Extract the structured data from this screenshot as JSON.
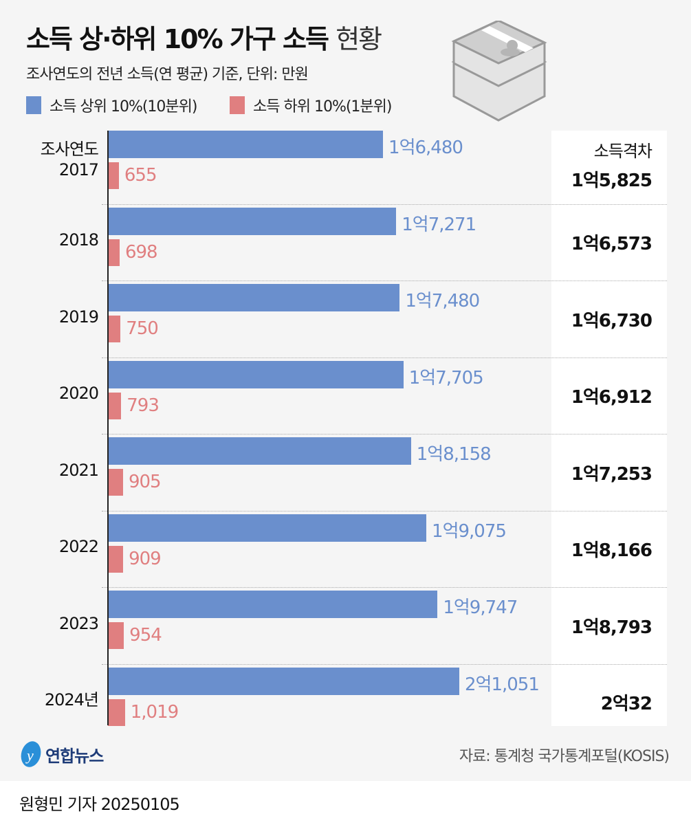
{
  "title_bold": "소득 상·하위 10% 가구 소득",
  "title_light": "현황",
  "subtitle": "조사연도의 전년 소득(연 평균) 기준, 단위: 만원",
  "legend": [
    {
      "label": "소득 상위 10%(10분위)",
      "color": "#6a8fcd"
    },
    {
      "label": "소득 하위 10%(1분위)",
      "color": "#e07f80"
    }
  ],
  "gap_header": "소득격차",
  "year_prefix": "조사연도",
  "chart_data": {
    "type": "bar",
    "orientation": "horizontal",
    "categories": [
      "2017",
      "2018",
      "2019",
      "2020",
      "2021",
      "2022",
      "2023",
      "2024년"
    ],
    "series": [
      {
        "name": "소득 상위 10%(10분위)",
        "color": "#6a8fcd",
        "values": [
          16480,
          17271,
          17480,
          17705,
          18158,
          19075,
          19747,
          21051
        ],
        "labels": [
          "1억6,480",
          "1억7,271",
          "1억7,480",
          "1억7,705",
          "1억8,158",
          "1억9,075",
          "1억9,747",
          "2억1,051"
        ]
      },
      {
        "name": "소득 하위 10%(1분위)",
        "color": "#e07f80",
        "values": [
          655,
          698,
          750,
          793,
          905,
          909,
          954,
          1019
        ],
        "labels": [
          "655",
          "698",
          "750",
          "793",
          "905",
          "909",
          "954",
          "1,019"
        ]
      }
    ],
    "gap": {
      "header": "소득격차",
      "values": [
        15825,
        16573,
        16730,
        16912,
        17253,
        18166,
        18793,
        20032
      ],
      "labels": [
        "1억5,825",
        "1억6,573",
        "1억6,730",
        "1억6,912",
        "1억7,253",
        "1억8,166",
        "1억8,793",
        "2억32"
      ]
    },
    "xlim": [
      0,
      21051
    ]
  },
  "logo": "연합뉴스",
  "source": "자료: 통계청 국가통계포털(KOSIS)",
  "byline": "원형민 기자  20250105"
}
